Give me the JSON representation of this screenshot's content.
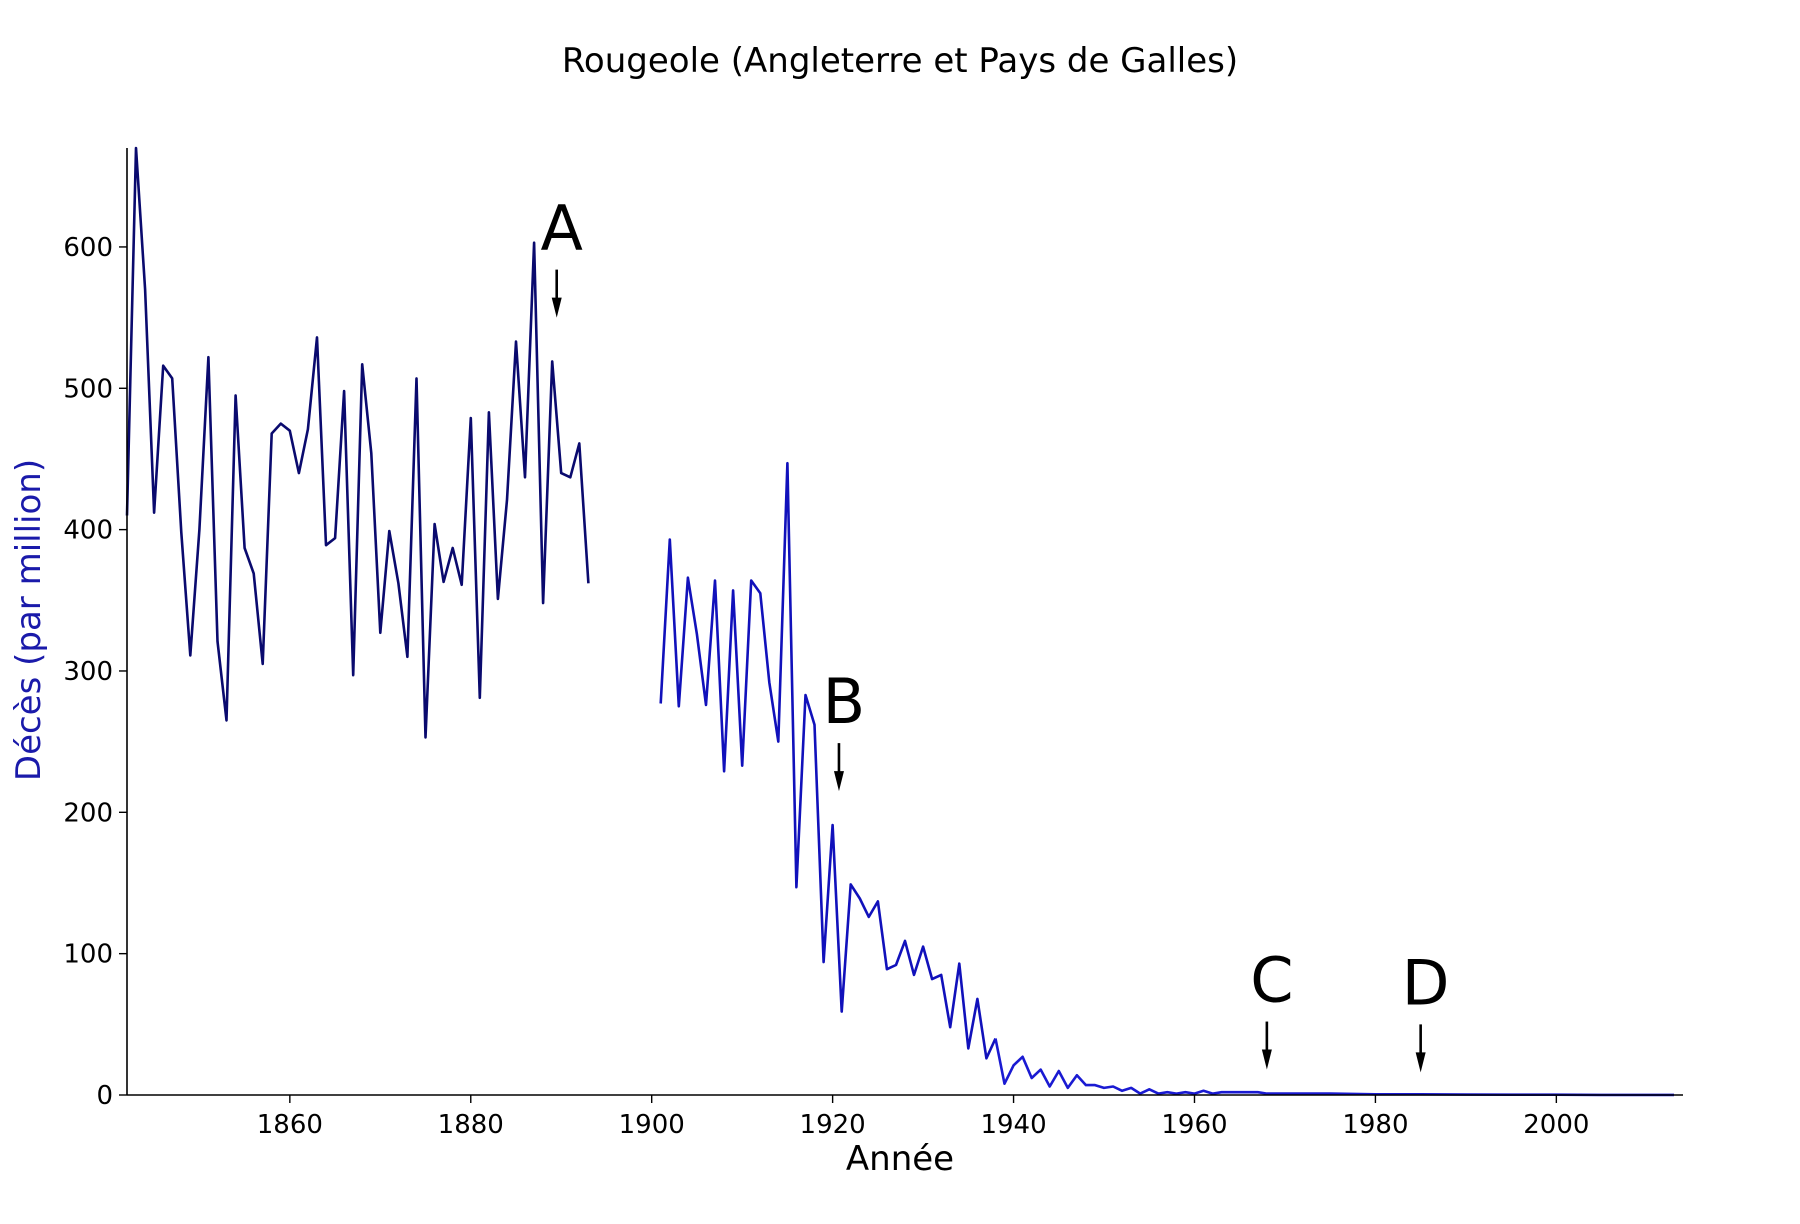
{
  "chart_data": {
    "type": "line",
    "title": "Rougeole (Angleterre et Pays de Galles)",
    "xlabel": "Année",
    "ylabel": "Décès (par million)",
    "xlim": [
      1842,
      2014
    ],
    "ylim": [
      0,
      670
    ],
    "x_ticks": [
      1860,
      1880,
      1900,
      1920,
      1940,
      1960,
      1980,
      2000
    ],
    "y_ticks": [
      0,
      100,
      200,
      300,
      400,
      500,
      600
    ],
    "grid": false,
    "legend": "none",
    "ylabel_color": "#1a1aaa",
    "series": [
      {
        "color": "#0a0a6e",
        "x": [
          1842,
          1843,
          1844,
          1845,
          1846,
          1847,
          1848,
          1849,
          1850,
          1851,
          1852,
          1853,
          1854,
          1855,
          1856,
          1857,
          1858,
          1859,
          1860,
          1861,
          1862,
          1863,
          1864,
          1865,
          1866,
          1867,
          1868,
          1869,
          1870,
          1871,
          1872,
          1873,
          1874,
          1875,
          1876,
          1877,
          1878,
          1879,
          1880,
          1881,
          1882,
          1883,
          1884,
          1885,
          1886,
          1887,
          1888,
          1889,
          1890,
          1891,
          1892,
          1893
        ],
        "y": [
          410,
          670,
          570,
          412,
          516,
          507,
          398,
          311,
          400,
          522,
          321,
          265,
          495,
          387,
          369,
          305,
          468,
          475,
          470,
          440,
          471,
          536,
          389,
          394,
          498,
          297,
          517,
          454,
          327,
          399,
          362,
          310,
          507,
          253,
          404,
          363,
          387,
          361,
          479,
          281,
          483,
          351,
          421,
          533,
          437,
          603,
          348,
          519,
          440,
          437,
          461,
          362
        ]
      },
      {
        "color": "#1111bb",
        "x": [
          1901,
          1902,
          1903,
          1904,
          1905,
          1906,
          1907,
          1908,
          1909,
          1910,
          1911,
          1912,
          1913,
          1914,
          1915,
          1916,
          1917,
          1918,
          1919,
          1920,
          1921,
          1922,
          1923,
          1924,
          1925,
          1926,
          1927,
          1928,
          1929,
          1930,
          1931,
          1932,
          1933,
          1934,
          1935,
          1936,
          1937,
          1938
        ],
        "y": [
          277,
          393,
          275,
          366,
          326,
          276,
          364,
          229,
          357,
          233,
          364,
          355,
          292,
          250,
          447,
          147,
          283,
          262,
          94,
          191,
          59,
          149,
          139,
          126,
          137,
          89,
          92,
          109,
          85,
          105,
          82,
          85,
          48,
          93,
          33,
          68,
          26,
          40
        ]
      },
      {
        "color": "#1a1ad2",
        "x": [
          1938,
          1939,
          1940,
          1941,
          1942,
          1943,
          1944,
          1945,
          1946,
          1947,
          1948,
          1949,
          1950,
          1951,
          1952,
          1953,
          1954,
          1955,
          1956,
          1957,
          1958,
          1959,
          1960,
          1961,
          1962,
          1963,
          1964,
          1965,
          1966,
          1967,
          1968,
          1970,
          1975,
          1980,
          1985,
          1990,
          1995,
          2000,
          2005,
          2010,
          2013
        ],
        "y": [
          40,
          8,
          21,
          27,
          12,
          18,
          6,
          17,
          5,
          14,
          7,
          7,
          5,
          6,
          3,
          5,
          1,
          4,
          1,
          2,
          1,
          2,
          1,
          3,
          1,
          2,
          2,
          2,
          2,
          2,
          1,
          1,
          1,
          0.5,
          0.5,
          0.3,
          0.2,
          0.2,
          0.1,
          0.1,
          0.1
        ]
      }
    ],
    "annotations": [
      {
        "label": "A",
        "x": 1889.5,
        "y": 550
      },
      {
        "label": "B",
        "x": 1920.7,
        "y": 215
      },
      {
        "label": "C",
        "x": 1968,
        "y": 18
      },
      {
        "label": "D",
        "x": 1985,
        "y": 16
      }
    ]
  }
}
